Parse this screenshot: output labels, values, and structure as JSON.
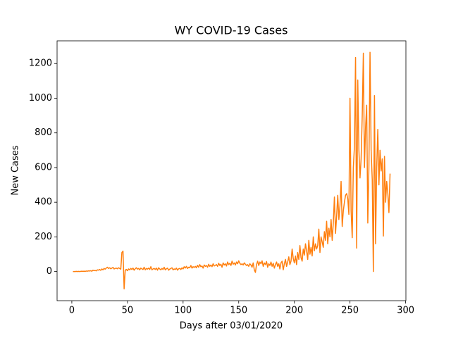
{
  "chart_data": {
    "type": "line",
    "title": "WY COVID-19 Cases",
    "xlabel": "Days after 03/01/2020",
    "ylabel": "New Cases",
    "color": "#ff7f0e",
    "xlim": [
      -13.25,
      300.25
    ],
    "ylim": [
      -168,
      1331
    ],
    "xticks": [
      0,
      50,
      100,
      150,
      200,
      250,
      300
    ],
    "yticks": [
      0,
      200,
      400,
      600,
      800,
      1000,
      1200
    ],
    "x": [
      1,
      2,
      3,
      4,
      5,
      6,
      7,
      8,
      9,
      10,
      11,
      12,
      13,
      14,
      15,
      16,
      17,
      18,
      19,
      20,
      21,
      22,
      23,
      24,
      25,
      26,
      27,
      28,
      29,
      30,
      31,
      32,
      33,
      34,
      35,
      36,
      37,
      38,
      39,
      40,
      41,
      42,
      43,
      44,
      45,
      46,
      47,
      48,
      49,
      50,
      51,
      52,
      53,
      54,
      55,
      56,
      57,
      58,
      59,
      60,
      61,
      62,
      63,
      64,
      65,
      66,
      67,
      68,
      69,
      70,
      71,
      72,
      73,
      74,
      75,
      76,
      77,
      78,
      79,
      80,
      81,
      82,
      83,
      84,
      85,
      86,
      87,
      88,
      89,
      90,
      91,
      92,
      93,
      94,
      95,
      96,
      97,
      98,
      99,
      100,
      101,
      102,
      103,
      104,
      105,
      106,
      107,
      108,
      109,
      110,
      111,
      112,
      113,
      114,
      115,
      116,
      117,
      118,
      119,
      120,
      121,
      122,
      123,
      124,
      125,
      126,
      127,
      128,
      129,
      130,
      131,
      132,
      133,
      134,
      135,
      136,
      137,
      138,
      139,
      140,
      141,
      142,
      143,
      144,
      145,
      146,
      147,
      148,
      149,
      150,
      151,
      152,
      153,
      154,
      155,
      156,
      157,
      158,
      159,
      160,
      161,
      162,
      163,
      164,
      165,
      166,
      167,
      168,
      169,
      170,
      171,
      172,
      173,
      174,
      175,
      176,
      177,
      178,
      179,
      180,
      181,
      182,
      183,
      184,
      185,
      186,
      187,
      188,
      189,
      190,
      191,
      192,
      193,
      194,
      195,
      196,
      197,
      198,
      199,
      200,
      201,
      202,
      203,
      204,
      205,
      206,
      207,
      208,
      209,
      210,
      211,
      212,
      213,
      214,
      215,
      216,
      217,
      218,
      219,
      220,
      221,
      222,
      223,
      224,
      225,
      226,
      227,
      228,
      229,
      230,
      231,
      232,
      233,
      234,
      235,
      236,
      237,
      238,
      239,
      240,
      241,
      242,
      243,
      244,
      245,
      246,
      247,
      248,
      249,
      250,
      251,
      252,
      253,
      254,
      255,
      256,
      257,
      258,
      259,
      260,
      261,
      262,
      263,
      264,
      265,
      266,
      267,
      268,
      269,
      270,
      271,
      272,
      273,
      274,
      275,
      276,
      277,
      278,
      279,
      280,
      281,
      282,
      283,
      284,
      285,
      286
    ],
    "values": [
      0,
      0,
      0,
      1,
      0,
      1,
      0,
      1,
      2,
      1,
      2,
      1,
      3,
      2,
      4,
      3,
      5,
      2,
      8,
      5,
      6,
      4,
      10,
      8,
      12,
      7,
      15,
      10,
      18,
      14,
      20,
      25,
      18,
      22,
      16,
      20,
      24,
      15,
      18,
      20,
      16,
      22,
      18,
      14,
      110,
      118,
      -100,
      8,
      12,
      5,
      15,
      10,
      18,
      12,
      20,
      8,
      16,
      22,
      14,
      18,
      10,
      20,
      15,
      12,
      25,
      10,
      18,
      14,
      20,
      12,
      28,
      10,
      15,
      18,
      12,
      20,
      8,
      22,
      15,
      10,
      18,
      12,
      25,
      10,
      16,
      20,
      8,
      14,
      18,
      22,
      10,
      15,
      12,
      20,
      8,
      16,
      18,
      12,
      22,
      15,
      28,
      20,
      30,
      18,
      25,
      22,
      35,
      20,
      28,
      24,
      30,
      22,
      36,
      25,
      40,
      28,
      32,
      20,
      38,
      30,
      35,
      25,
      42,
      30,
      38,
      28,
      45,
      32,
      36,
      40,
      30,
      48,
      35,
      42,
      25,
      50,
      38,
      45,
      32,
      55,
      40,
      48,
      35,
      60,
      42,
      50,
      38,
      55,
      45,
      62,
      48,
      40,
      45,
      38,
      50,
      42,
      35,
      40,
      30,
      45,
      38,
      25,
      50,
      10,
      -5,
      40,
      60,
      35,
      55,
      45,
      62,
      30,
      50,
      40,
      58,
      25,
      45,
      35,
      55,
      30,
      48,
      20,
      40,
      55,
      30,
      45,
      15,
      50,
      60,
      10,
      45,
      70,
      30,
      55,
      85,
      40,
      60,
      130,
      75,
      50,
      90,
      40,
      110,
      70,
      150,
      80,
      60,
      130,
      95,
      160,
      120,
      70,
      180,
      100,
      140,
      90,
      200,
      120,
      160,
      130,
      150,
      245,
      110,
      200,
      170,
      140,
      230,
      180,
      290,
      160,
      250,
      200,
      300,
      180,
      280,
      430,
      220,
      320,
      440,
      300,
      380,
      520,
      260,
      350,
      400,
      440,
      450,
      420,
      330,
      1000,
      350,
      195,
      600,
      720,
      1235,
      135,
      1105,
      700,
      540,
      650,
      900,
      1260,
      600,
      830,
      960,
      280,
      600,
      1265,
      700,
      530,
      0,
      1015,
      160,
      600,
      820,
      500,
      700,
      580,
      650,
      205,
      665,
      400,
      520,
      450,
      340,
      565
    ]
  }
}
